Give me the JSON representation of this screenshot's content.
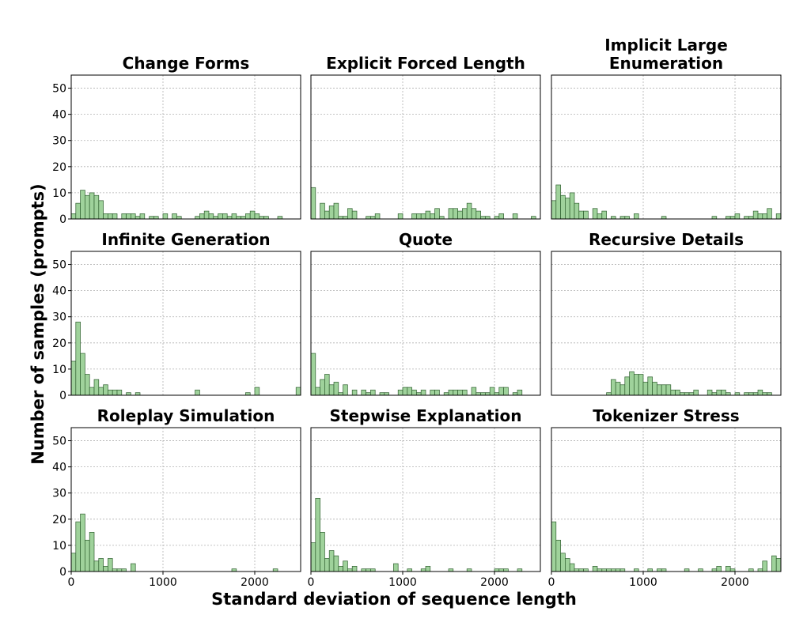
{
  "chart_data": {
    "type": "bar",
    "subtype": "histogram-grid",
    "layout": "3x3",
    "xlabel": "Standard deviation of sequence length",
    "ylabel": "Number of samples (prompts)",
    "xlim": [
      0,
      2500
    ],
    "ylim": [
      0,
      55
    ],
    "bin_width": 50,
    "xticks": [
      0,
      1000,
      2000
    ],
    "yticks": [
      0,
      10,
      20,
      30,
      40,
      50
    ],
    "grid": true,
    "colors": {
      "bar_fill": "#9fd29b",
      "bar_edge": "#2f5f2f",
      "frame": "#000000",
      "grid": "#b0b0b0"
    },
    "panels": [
      {
        "title": "Change Forms",
        "bins": [
          [
            0,
            2
          ],
          [
            50,
            6
          ],
          [
            100,
            11
          ],
          [
            150,
            9
          ],
          [
            200,
            10
          ],
          [
            250,
            9
          ],
          [
            300,
            7
          ],
          [
            350,
            2
          ],
          [
            400,
            2
          ],
          [
            450,
            2
          ],
          [
            550,
            2
          ],
          [
            600,
            2
          ],
          [
            650,
            2
          ],
          [
            700,
            1
          ],
          [
            750,
            2
          ],
          [
            850,
            1
          ],
          [
            900,
            1
          ],
          [
            1000,
            2
          ],
          [
            1100,
            2
          ],
          [
            1150,
            1
          ],
          [
            1350,
            1
          ],
          [
            1400,
            2
          ],
          [
            1450,
            3
          ],
          [
            1500,
            2
          ],
          [
            1550,
            1
          ],
          [
            1600,
            2
          ],
          [
            1650,
            2
          ],
          [
            1700,
            1
          ],
          [
            1750,
            2
          ],
          [
            1800,
            1
          ],
          [
            1850,
            1
          ],
          [
            1900,
            2
          ],
          [
            1950,
            3
          ],
          [
            2000,
            2
          ],
          [
            2050,
            1
          ],
          [
            2100,
            1
          ],
          [
            2250,
            1
          ]
        ]
      },
      {
        "title": "Explicit Forced Length",
        "bins": [
          [
            0,
            12
          ],
          [
            100,
            6
          ],
          [
            150,
            3
          ],
          [
            200,
            5
          ],
          [
            250,
            6
          ],
          [
            300,
            1
          ],
          [
            350,
            1
          ],
          [
            400,
            4
          ],
          [
            450,
            3
          ],
          [
            600,
            1
          ],
          [
            650,
            1
          ],
          [
            700,
            2
          ],
          [
            950,
            2
          ],
          [
            1100,
            2
          ],
          [
            1150,
            2
          ],
          [
            1200,
            2
          ],
          [
            1250,
            3
          ],
          [
            1300,
            2
          ],
          [
            1350,
            4
          ],
          [
            1400,
            1
          ],
          [
            1500,
            4
          ],
          [
            1550,
            4
          ],
          [
            1600,
            3
          ],
          [
            1650,
            4
          ],
          [
            1700,
            6
          ],
          [
            1750,
            4
          ],
          [
            1800,
            3
          ],
          [
            1850,
            1
          ],
          [
            1900,
            1
          ],
          [
            2000,
            1
          ],
          [
            2050,
            2
          ],
          [
            2200,
            2
          ],
          [
            2400,
            1
          ]
        ]
      },
      {
        "title": "Implicit Large Enumeration",
        "bins": [
          [
            0,
            7
          ],
          [
            50,
            13
          ],
          [
            100,
            9
          ],
          [
            150,
            8
          ],
          [
            200,
            10
          ],
          [
            250,
            6
          ],
          [
            300,
            3
          ],
          [
            350,
            3
          ],
          [
            450,
            4
          ],
          [
            500,
            2
          ],
          [
            550,
            3
          ],
          [
            650,
            1
          ],
          [
            750,
            1
          ],
          [
            800,
            1
          ],
          [
            900,
            2
          ],
          [
            1200,
            1
          ],
          [
            1750,
            1
          ],
          [
            1900,
            1
          ],
          [
            1950,
            1
          ],
          [
            2000,
            2
          ],
          [
            2100,
            1
          ],
          [
            2150,
            1
          ],
          [
            2200,
            3
          ],
          [
            2250,
            2
          ],
          [
            2300,
            2
          ],
          [
            2350,
            4
          ],
          [
            2450,
            2
          ]
        ]
      },
      {
        "title": "Infinite Generation",
        "bins": [
          [
            0,
            13
          ],
          [
            50,
            28
          ],
          [
            100,
            16
          ],
          [
            150,
            8
          ],
          [
            200,
            3
          ],
          [
            250,
            6
          ],
          [
            300,
            3
          ],
          [
            350,
            4
          ],
          [
            400,
            2
          ],
          [
            450,
            2
          ],
          [
            500,
            2
          ],
          [
            600,
            1
          ],
          [
            700,
            1
          ],
          [
            1350,
            2
          ],
          [
            1900,
            1
          ],
          [
            2000,
            3
          ],
          [
            2450,
            3
          ]
        ]
      },
      {
        "title": "Quote",
        "bins": [
          [
            0,
            16
          ],
          [
            50,
            3
          ],
          [
            100,
            6
          ],
          [
            150,
            8
          ],
          [
            200,
            4
          ],
          [
            250,
            5
          ],
          [
            300,
            1
          ],
          [
            350,
            4
          ],
          [
            450,
            2
          ],
          [
            550,
            2
          ],
          [
            600,
            1
          ],
          [
            650,
            2
          ],
          [
            750,
            1
          ],
          [
            800,
            1
          ],
          [
            950,
            2
          ],
          [
            1000,
            3
          ],
          [
            1050,
            3
          ],
          [
            1100,
            2
          ],
          [
            1150,
            1
          ],
          [
            1200,
            2
          ],
          [
            1300,
            2
          ],
          [
            1350,
            2
          ],
          [
            1450,
            1
          ],
          [
            1500,
            2
          ],
          [
            1550,
            2
          ],
          [
            1600,
            2
          ],
          [
            1650,
            2
          ],
          [
            1750,
            3
          ],
          [
            1800,
            1
          ],
          [
            1850,
            1
          ],
          [
            1900,
            1
          ],
          [
            1950,
            3
          ],
          [
            2000,
            1
          ],
          [
            2050,
            3
          ],
          [
            2100,
            3
          ],
          [
            2200,
            1
          ],
          [
            2250,
            2
          ]
        ]
      },
      {
        "title": "Recursive Details",
        "bins": [
          [
            600,
            1
          ],
          [
            650,
            6
          ],
          [
            700,
            5
          ],
          [
            750,
            4
          ],
          [
            800,
            7
          ],
          [
            850,
            9
          ],
          [
            900,
            8
          ],
          [
            950,
            8
          ],
          [
            1000,
            5
          ],
          [
            1050,
            7
          ],
          [
            1100,
            5
          ],
          [
            1150,
            4
          ],
          [
            1200,
            4
          ],
          [
            1250,
            4
          ],
          [
            1300,
            2
          ],
          [
            1350,
            2
          ],
          [
            1400,
            1
          ],
          [
            1450,
            1
          ],
          [
            1500,
            1
          ],
          [
            1550,
            2
          ],
          [
            1700,
            2
          ],
          [
            1750,
            1
          ],
          [
            1800,
            2
          ],
          [
            1850,
            2
          ],
          [
            1900,
            1
          ],
          [
            2000,
            1
          ],
          [
            2100,
            1
          ],
          [
            2150,
            1
          ],
          [
            2200,
            1
          ],
          [
            2250,
            2
          ],
          [
            2300,
            1
          ],
          [
            2350,
            1
          ]
        ]
      },
      {
        "title": "Roleplay Simulation",
        "bins": [
          [
            0,
            7
          ],
          [
            50,
            19
          ],
          [
            100,
            22
          ],
          [
            150,
            12
          ],
          [
            200,
            15
          ],
          [
            250,
            4
          ],
          [
            300,
            5
          ],
          [
            350,
            2
          ],
          [
            400,
            5
          ],
          [
            450,
            1
          ],
          [
            500,
            1
          ],
          [
            550,
            1
          ],
          [
            650,
            3
          ],
          [
            1750,
            1
          ],
          [
            2200,
            1
          ]
        ]
      },
      {
        "title": "Stepwise Explanation",
        "bins": [
          [
            0,
            11
          ],
          [
            50,
            28
          ],
          [
            100,
            15
          ],
          [
            150,
            5
          ],
          [
            200,
            8
          ],
          [
            250,
            6
          ],
          [
            300,
            2
          ],
          [
            350,
            4
          ],
          [
            400,
            1
          ],
          [
            450,
            2
          ],
          [
            550,
            1
          ],
          [
            600,
            1
          ],
          [
            650,
            1
          ],
          [
            900,
            3
          ],
          [
            1050,
            1
          ],
          [
            1200,
            1
          ],
          [
            1250,
            2
          ],
          [
            1500,
            1
          ],
          [
            1700,
            1
          ],
          [
            2000,
            1
          ],
          [
            2050,
            1
          ],
          [
            2100,
            1
          ],
          [
            2250,
            1
          ]
        ]
      },
      {
        "title": "Tokenizer Stress",
        "bins": [
          [
            0,
            19
          ],
          [
            50,
            12
          ],
          [
            100,
            7
          ],
          [
            150,
            5
          ],
          [
            200,
            3
          ],
          [
            250,
            1
          ],
          [
            300,
            1
          ],
          [
            350,
            1
          ],
          [
            450,
            2
          ],
          [
            500,
            1
          ],
          [
            550,
            1
          ],
          [
            600,
            1
          ],
          [
            650,
            1
          ],
          [
            700,
            1
          ],
          [
            750,
            1
          ],
          [
            900,
            1
          ],
          [
            1050,
            1
          ],
          [
            1150,
            1
          ],
          [
            1200,
            1
          ],
          [
            1450,
            1
          ],
          [
            1600,
            1
          ],
          [
            1750,
            1
          ],
          [
            1800,
            2
          ],
          [
            1900,
            2
          ],
          [
            1950,
            1
          ],
          [
            2150,
            1
          ],
          [
            2250,
            1
          ],
          [
            2300,
            4
          ],
          [
            2400,
            6
          ],
          [
            2450,
            5
          ],
          [
            2500,
            6
          ]
        ]
      }
    ]
  }
}
